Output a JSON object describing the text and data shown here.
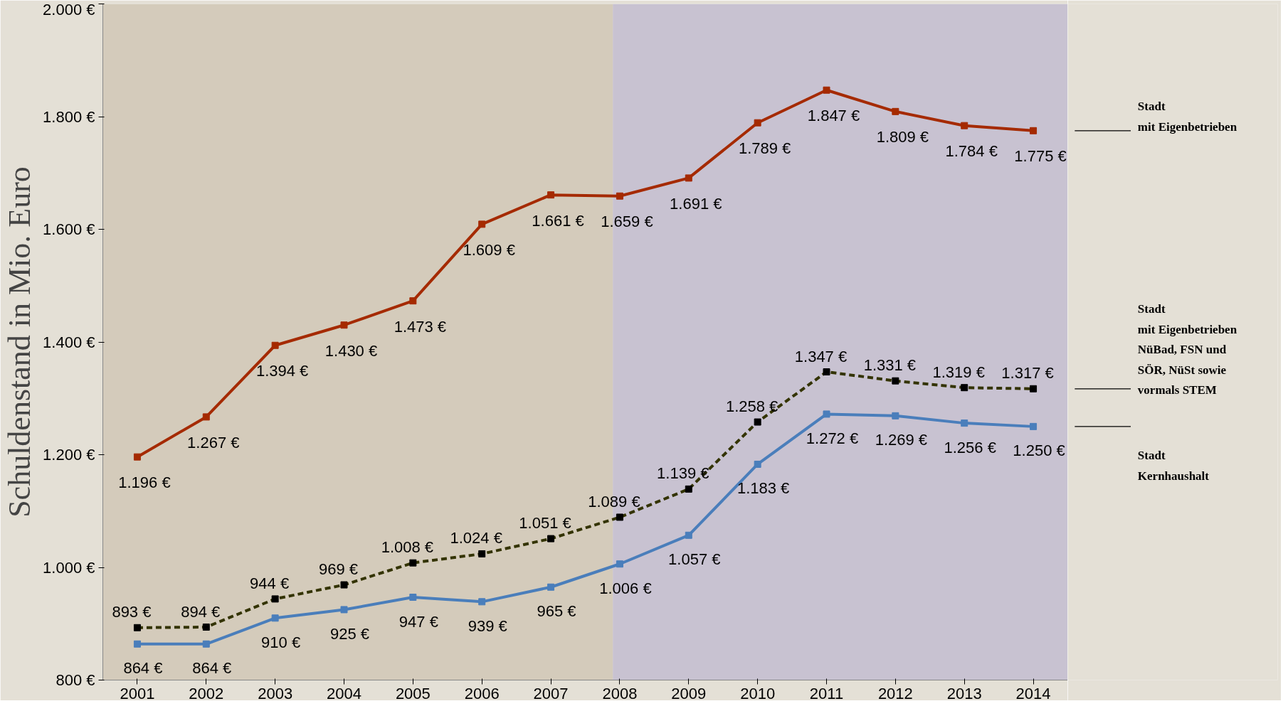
{
  "chart_data": {
    "type": "line",
    "ylabel": "Schuldenstand in Mio. Euro",
    "x": [
      2001,
      2002,
      2003,
      2004,
      2005,
      2006,
      2007,
      2008,
      2009,
      2010,
      2011,
      2012,
      2013,
      2014
    ],
    "xlim": [
      2000.5,
      2014.5
    ],
    "xticks": [
      2001,
      2002,
      2003,
      2004,
      2005,
      2006,
      2007,
      2008,
      2009,
      2010,
      2011,
      2012,
      2013,
      2014
    ],
    "ylim": [
      800,
      2000
    ],
    "yticks": [
      {
        "value": 800,
        "label": "800 €"
      },
      {
        "value": 1000,
        "label": "1.000 €"
      },
      {
        "value": 1200,
        "label": "1.200 €"
      },
      {
        "value": 1400,
        "label": "1.400 €"
      },
      {
        "value": 1600,
        "label": "1.600 €"
      },
      {
        "value": 1800,
        "label": "1.800 €"
      },
      {
        "value": 2000,
        "label": "2.000 €"
      }
    ],
    "marker": "square",
    "bands": [
      {
        "axis": "x",
        "from": 2000.5,
        "to": 2007.9,
        "color": "#d4cbbb"
      },
      {
        "axis": "x",
        "from": 2007.9,
        "to": 2014.5,
        "color": "#c8c2d1"
      }
    ],
    "series": [
      {
        "name": "Stadt\nmit Eigenbetrieben",
        "color": "#a52a00",
        "line_style": "solid",
        "values": [
          1196,
          1267,
          1394,
          1430,
          1473,
          1609,
          1661,
          1659,
          1691,
          1789,
          1847,
          1809,
          1784,
          1775
        ],
        "value_labels": [
          "1.196 €",
          "1.267 €",
          "1.394 €",
          "1.430 €",
          "1.473 €",
          "1.609 €",
          "1.661 €",
          "1.659 €",
          "1.691 €",
          "1.789 €",
          "1.847 €",
          "1.809 €",
          "1.784 €",
          "1.775 €"
        ]
      },
      {
        "name": "Stadt\nmit Eigenbetrieben\nNüBad, FSN und\nSÖR, NüSt sowie\nvormals STEM",
        "color": "#333300",
        "line_style": "dashed",
        "values": [
          893,
          894,
          944,
          969,
          1008,
          1024,
          1051,
          1089,
          1139,
          1258,
          1347,
          1331,
          1319,
          1317
        ],
        "value_labels": [
          "893 €",
          "894 €",
          "944 €",
          "969 €",
          "1.008 €",
          "1.024 €",
          "1.051 €",
          "1.089 €",
          "1.139 €",
          "1.258 €",
          "1.347 €",
          "1.331 €",
          "1.319 €",
          "1.317 €"
        ]
      },
      {
        "name": "Stadt\nKernhaushalt",
        "color": "#4a7ebb",
        "line_style": "solid",
        "values": [
          864,
          864,
          910,
          925,
          947,
          939,
          965,
          1006,
          1057,
          1183,
          1272,
          1269,
          1256,
          1250
        ],
        "value_labels": [
          "864 €",
          "864 €",
          "910 €",
          "925 €",
          "947 €",
          "939 €",
          "965 €",
          "1.006 €",
          "1.057 €",
          "1.183 €",
          "1.272 €",
          "1.269 €",
          "1.256 €",
          "1.250 €"
        ]
      }
    ]
  }
}
